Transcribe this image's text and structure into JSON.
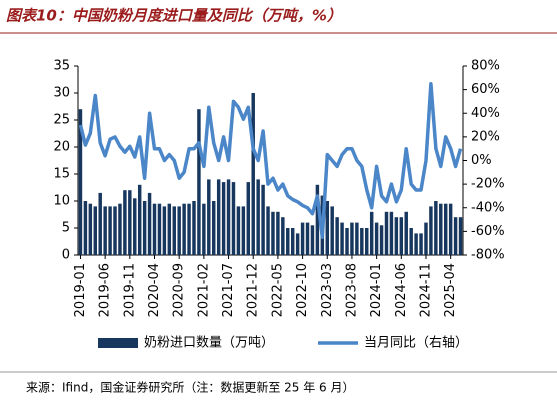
{
  "chart_data": {
    "type": "bar",
    "title": "图表10：中国奶粉月度进口量及同比（万吨，%）",
    "source": "来源：Ifind，国金证券研究所（注：数据更新至 25 年 6 月）",
    "categories": [
      "2019-01",
      null,
      null,
      null,
      null,
      "2019-06",
      null,
      null,
      null,
      null,
      "2019-11",
      null,
      null,
      null,
      null,
      "2020-04",
      null,
      null,
      null,
      null,
      "2020-09",
      null,
      null,
      null,
      null,
      "2021-02",
      null,
      null,
      null,
      null,
      "2021-07",
      null,
      null,
      null,
      null,
      "2021-12",
      null,
      null,
      null,
      null,
      "2022-05",
      null,
      null,
      null,
      null,
      "2022-10",
      null,
      null,
      null,
      null,
      "2023-03",
      null,
      null,
      null,
      null,
      "2023-08",
      null,
      null,
      null,
      null,
      "2024-01",
      null,
      null,
      null,
      null,
      "2024-06",
      null,
      null,
      null,
      null,
      "2024-11",
      null,
      null,
      null,
      null,
      "2025-04",
      null,
      null
    ],
    "series": [
      {
        "name": "奶粉进口数量（万吨）",
        "type": "bar",
        "color": "#17375e",
        "values": [
          27,
          10,
          9.5,
          9,
          11.5,
          9,
          9,
          9,
          9.5,
          12,
          12,
          10.5,
          13,
          10,
          11.5,
          9.5,
          9.5,
          9,
          9.5,
          9,
          9,
          9.5,
          9.5,
          10,
          27,
          9.5,
          14,
          10,
          14,
          13.5,
          14,
          13.5,
          9,
          9,
          13.5,
          30,
          14,
          13,
          9,
          8,
          8,
          7,
          5,
          5,
          4,
          6,
          6,
          5.5,
          13,
          11,
          10,
          9,
          7,
          6,
          5,
          6,
          6,
          5,
          5,
          8,
          6,
          5.5,
          8,
          8,
          7,
          7,
          8,
          5,
          4,
          4,
          6,
          9,
          10,
          9.5,
          9.5,
          9.5,
          7,
          7
        ]
      },
      {
        "name": "当月同比（右轴）",
        "type": "line",
        "axis": "y2",
        "color": "#4a86c8",
        "values": [
          30,
          13,
          23,
          55,
          15,
          4,
          18,
          20,
          12,
          7,
          12,
          3,
          20,
          -15,
          40,
          10,
          10,
          0,
          5,
          0,
          -15,
          -10,
          10,
          10,
          15,
          -5,
          45,
          15,
          0,
          20,
          0,
          50,
          45,
          35,
          45,
          10,
          0,
          25,
          -20,
          -15,
          -25,
          -20,
          -30,
          -33,
          -35,
          -38,
          -40,
          -45,
          -30,
          -65,
          5,
          0,
          -5,
          5,
          10,
          10,
          0,
          -5,
          -25,
          -40,
          -5,
          -30,
          -35,
          -20,
          -35,
          -25,
          10,
          -20,
          -25,
          -25,
          0,
          65,
          10,
          -5,
          20,
          10,
          -5,
          10
        ]
      }
    ],
    "ylim": [
      0,
      35
    ],
    "yticks": [
      0,
      5,
      10,
      15,
      20,
      25,
      30,
      35
    ],
    "y2lim": [
      -80,
      80
    ],
    "y2ticks": [
      {
        "value": -80,
        "label": "-80%"
      },
      {
        "value": -60,
        "label": "-60%"
      },
      {
        "value": -40,
        "label": "-40%"
      },
      {
        "value": -20,
        "label": "-20%"
      },
      {
        "value": 0,
        "label": "0%"
      },
      {
        "value": 20,
        "label": "20%"
      },
      {
        "value": 40,
        "label": "40%"
      },
      {
        "value": 60,
        "label": "60%"
      },
      {
        "value": 80,
        "label": "80%"
      }
    ],
    "grid": false,
    "legend": "bottom"
  }
}
